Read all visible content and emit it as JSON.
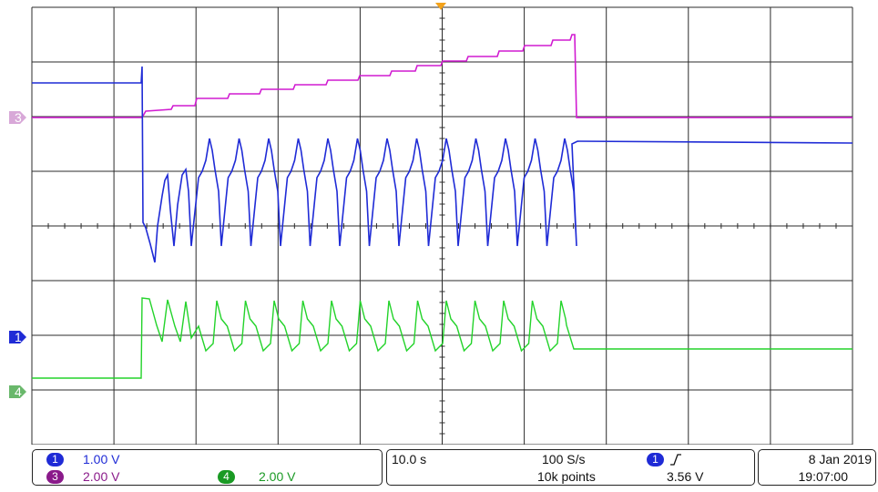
{
  "colors": {
    "ch1": "#1f2bd6",
    "ch3": "#d11bd1",
    "ch4": "#23d32a",
    "grid": "#2b2b2b",
    "trigger": "#f3a21b"
  },
  "markers": {
    "ch3": "3",
    "ch1": "1",
    "ch4": "4"
  },
  "status": {
    "ch1": {
      "id": "1",
      "scale": "1.00 V"
    },
    "ch3": {
      "id": "3",
      "scale": "2.00 V"
    },
    "ch4": {
      "id": "4",
      "scale": "2.00 V"
    },
    "timebase": "10.0 s",
    "sample_rate": "100 S/s",
    "record_length": "10k points",
    "trigger": {
      "channel": "1",
      "slope_icon": "rising-edge-icon",
      "level": "3.56 V"
    },
    "date": "8 Jan 2019",
    "time": "19:07:00"
  }
}
